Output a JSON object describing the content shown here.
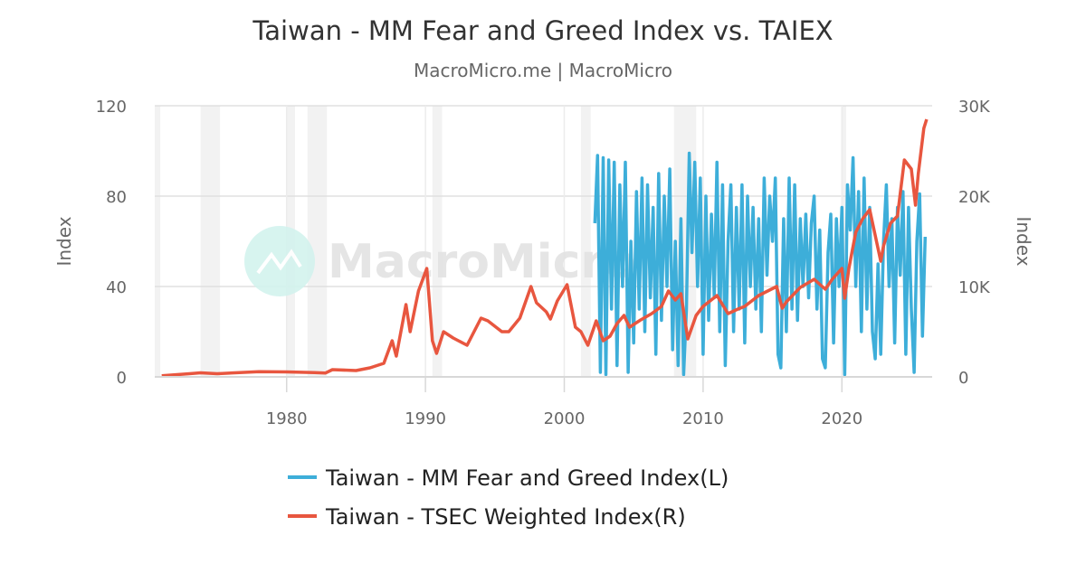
{
  "chart_data": {
    "type": "line",
    "title": "Taiwan - MM Fear and Greed Index vs. TAIEX",
    "subtitle": "MacroMicro.me | MacroMicro",
    "watermark": "MacroMicro",
    "xlim": [
      1970.5,
      2026.5
    ],
    "x_ticks": [
      "1980",
      "1990",
      "2000",
      "2010",
      "2020"
    ],
    "x_tick_values": [
      1980,
      1990,
      2000,
      2010,
      2020
    ],
    "left_axis": {
      "label": "Index",
      "ylim": [
        0,
        120
      ],
      "ticks": [
        "0",
        "40",
        "80",
        "120"
      ],
      "tick_values": [
        0,
        40,
        80,
        120
      ]
    },
    "right_axis": {
      "label": "Index",
      "ylim": [
        0,
        30000
      ],
      "ticks": [
        "0",
        "10K",
        "20K",
        "30K"
      ],
      "tick_values": [
        0,
        10000,
        20000,
        30000
      ]
    },
    "grid": true,
    "legend_position": "bottom",
    "shaded_periods": [
      [
        1970.5,
        1970.9
      ],
      [
        1973.8,
        1975.2
      ],
      [
        1980.0,
        1980.6
      ],
      [
        1981.5,
        1982.9
      ],
      [
        1990.5,
        1991.2
      ],
      [
        2001.2,
        2001.9
      ],
      [
        2007.9,
        2009.5
      ],
      [
        2020.0,
        2020.3
      ]
    ],
    "series": [
      {
        "name": "Taiwan - MM Fear and Greed Index(L)",
        "axis": "left",
        "color": "#3daed9",
        "points": [
          [
            2002.2,
            68
          ],
          [
            2002.4,
            98
          ],
          [
            2002.6,
            2
          ],
          [
            2002.8,
            97
          ],
          [
            2003.0,
            1
          ],
          [
            2003.2,
            96
          ],
          [
            2003.4,
            30
          ],
          [
            2003.6,
            95
          ],
          [
            2003.8,
            5
          ],
          [
            2004.0,
            85
          ],
          [
            2004.2,
            40
          ],
          [
            2004.4,
            95
          ],
          [
            2004.6,
            2
          ],
          [
            2004.8,
            60
          ],
          [
            2005.0,
            15
          ],
          [
            2005.2,
            82
          ],
          [
            2005.4,
            30
          ],
          [
            2005.6,
            88
          ],
          [
            2005.8,
            20
          ],
          [
            2006.0,
            85
          ],
          [
            2006.2,
            35
          ],
          [
            2006.4,
            75
          ],
          [
            2006.6,
            10
          ],
          [
            2006.8,
            90
          ],
          [
            2007.0,
            25
          ],
          [
            2007.2,
            80
          ],
          [
            2007.4,
            40
          ],
          [
            2007.6,
            92
          ],
          [
            2007.8,
            12
          ],
          [
            2008.0,
            60
          ],
          [
            2008.2,
            5
          ],
          [
            2008.4,
            70
          ],
          [
            2008.6,
            1
          ],
          [
            2008.8,
            30
          ],
          [
            2009.0,
            99
          ],
          [
            2009.2,
            55
          ],
          [
            2009.4,
            95
          ],
          [
            2009.6,
            40
          ],
          [
            2009.8,
            88
          ],
          [
            2010.0,
            10
          ],
          [
            2010.2,
            80
          ],
          [
            2010.4,
            25
          ],
          [
            2010.6,
            72
          ],
          [
            2010.8,
            35
          ],
          [
            2011.0,
            95
          ],
          [
            2011.2,
            20
          ],
          [
            2011.4,
            85
          ],
          [
            2011.6,
            5
          ],
          [
            2011.8,
            60
          ],
          [
            2012.0,
            85
          ],
          [
            2012.2,
            20
          ],
          [
            2012.4,
            75
          ],
          [
            2012.6,
            30
          ],
          [
            2012.8,
            85
          ],
          [
            2013.0,
            15
          ],
          [
            2013.2,
            80
          ],
          [
            2013.4,
            40
          ],
          [
            2013.6,
            75
          ],
          [
            2013.8,
            30
          ],
          [
            2014.0,
            70
          ],
          [
            2014.2,
            20
          ],
          [
            2014.4,
            88
          ],
          [
            2014.6,
            45
          ],
          [
            2014.8,
            80
          ],
          [
            2015.0,
            60
          ],
          [
            2015.2,
            88
          ],
          [
            2015.4,
            10
          ],
          [
            2015.6,
            4
          ],
          [
            2015.8,
            70
          ],
          [
            2016.0,
            20
          ],
          [
            2016.2,
            88
          ],
          [
            2016.4,
            30
          ],
          [
            2016.6,
            85
          ],
          [
            2016.8,
            25
          ],
          [
            2017.0,
            70
          ],
          [
            2017.2,
            40
          ],
          [
            2017.4,
            72
          ],
          [
            2017.6,
            35
          ],
          [
            2017.8,
            68
          ],
          [
            2018.0,
            80
          ],
          [
            2018.2,
            30
          ],
          [
            2018.4,
            65
          ],
          [
            2018.6,
            8
          ],
          [
            2018.8,
            4
          ],
          [
            2019.0,
            55
          ],
          [
            2019.2,
            72
          ],
          [
            2019.4,
            15
          ],
          [
            2019.6,
            70
          ],
          [
            2019.8,
            40
          ],
          [
            2020.0,
            75
          ],
          [
            2020.2,
            1
          ],
          [
            2020.4,
            85
          ],
          [
            2020.6,
            65
          ],
          [
            2020.8,
            97
          ],
          [
            2021.0,
            40
          ],
          [
            2021.2,
            82
          ],
          [
            2021.4,
            20
          ],
          [
            2021.6,
            88
          ],
          [
            2021.8,
            30
          ],
          [
            2022.0,
            75
          ],
          [
            2022.2,
            20
          ],
          [
            2022.4,
            8
          ],
          [
            2022.6,
            50
          ],
          [
            2022.8,
            10
          ],
          [
            2023.0,
            60
          ],
          [
            2023.2,
            85
          ],
          [
            2023.4,
            40
          ],
          [
            2023.6,
            70
          ],
          [
            2023.8,
            15
          ],
          [
            2024.0,
            75
          ],
          [
            2024.2,
            45
          ],
          [
            2024.4,
            82
          ],
          [
            2024.6,
            10
          ],
          [
            2024.8,
            75
          ],
          [
            2025.0,
            30
          ],
          [
            2025.2,
            2
          ],
          [
            2025.4,
            60
          ],
          [
            2025.6,
            81
          ],
          [
            2025.8,
            18
          ],
          [
            2026.0,
            62
          ]
        ]
      },
      {
        "name": "Taiwan - TSEC Weighted Index(R)",
        "axis": "right",
        "color": "#e8563f",
        "points": [
          [
            1971.0,
            130
          ],
          [
            1973.0,
            350
          ],
          [
            1973.8,
            450
          ],
          [
            1975.0,
            350
          ],
          [
            1978.0,
            580
          ],
          [
            1980.0,
            550
          ],
          [
            1982.0,
            480
          ],
          [
            1982.8,
            430
          ],
          [
            1983.3,
            800
          ],
          [
            1985.0,
            700
          ],
          [
            1986.0,
            1000
          ],
          [
            1987.0,
            1500
          ],
          [
            1987.6,
            4000
          ],
          [
            1987.9,
            2300
          ],
          [
            1988.6,
            8000
          ],
          [
            1988.9,
            5000
          ],
          [
            1989.5,
            9500
          ],
          [
            1990.1,
            12000
          ],
          [
            1990.5,
            4000
          ],
          [
            1990.8,
            2600
          ],
          [
            1991.3,
            5000
          ],
          [
            1992.0,
            4300
          ],
          [
            1993.0,
            3500
          ],
          [
            1994.0,
            6500
          ],
          [
            1994.5,
            6200
          ],
          [
            1995.5,
            5000
          ],
          [
            1996.0,
            5000
          ],
          [
            1996.8,
            6500
          ],
          [
            1997.6,
            10000
          ],
          [
            1998.0,
            8200
          ],
          [
            1998.7,
            7200
          ],
          [
            1999.0,
            6400
          ],
          [
            1999.5,
            8400
          ],
          [
            2000.2,
            10200
          ],
          [
            2000.8,
            5500
          ],
          [
            2001.2,
            5000
          ],
          [
            2001.7,
            3500
          ],
          [
            2002.3,
            6200
          ],
          [
            2002.8,
            4000
          ],
          [
            2003.3,
            4500
          ],
          [
            2003.8,
            5900
          ],
          [
            2004.3,
            6800
          ],
          [
            2004.7,
            5500
          ],
          [
            2005.5,
            6300
          ],
          [
            2006.3,
            7000
          ],
          [
            2007.0,
            7800
          ],
          [
            2007.5,
            9500
          ],
          [
            2008.0,
            8500
          ],
          [
            2008.4,
            9200
          ],
          [
            2008.9,
            4200
          ],
          [
            2009.5,
            6800
          ],
          [
            2010.0,
            7800
          ],
          [
            2011.0,
            9000
          ],
          [
            2011.8,
            7000
          ],
          [
            2012.5,
            7500
          ],
          [
            2013.0,
            7800
          ],
          [
            2014.0,
            9000
          ],
          [
            2015.3,
            10000
          ],
          [
            2015.7,
            7600
          ],
          [
            2016.0,
            8300
          ],
          [
            2017.0,
            9900
          ],
          [
            2018.0,
            10800
          ],
          [
            2018.8,
            9700
          ],
          [
            2019.3,
            10800
          ],
          [
            2020.0,
            12000
          ],
          [
            2020.2,
            8700
          ],
          [
            2020.5,
            12000
          ],
          [
            2021.0,
            16000
          ],
          [
            2021.5,
            17500
          ],
          [
            2022.0,
            18500
          ],
          [
            2022.8,
            12800
          ],
          [
            2023.0,
            14500
          ],
          [
            2023.5,
            17000
          ],
          [
            2024.0,
            17800
          ],
          [
            2024.5,
            24000
          ],
          [
            2025.0,
            23000
          ],
          [
            2025.3,
            19000
          ],
          [
            2025.5,
            22500
          ],
          [
            2025.9,
            27500
          ],
          [
            2026.1,
            28500
          ]
        ]
      }
    ]
  }
}
